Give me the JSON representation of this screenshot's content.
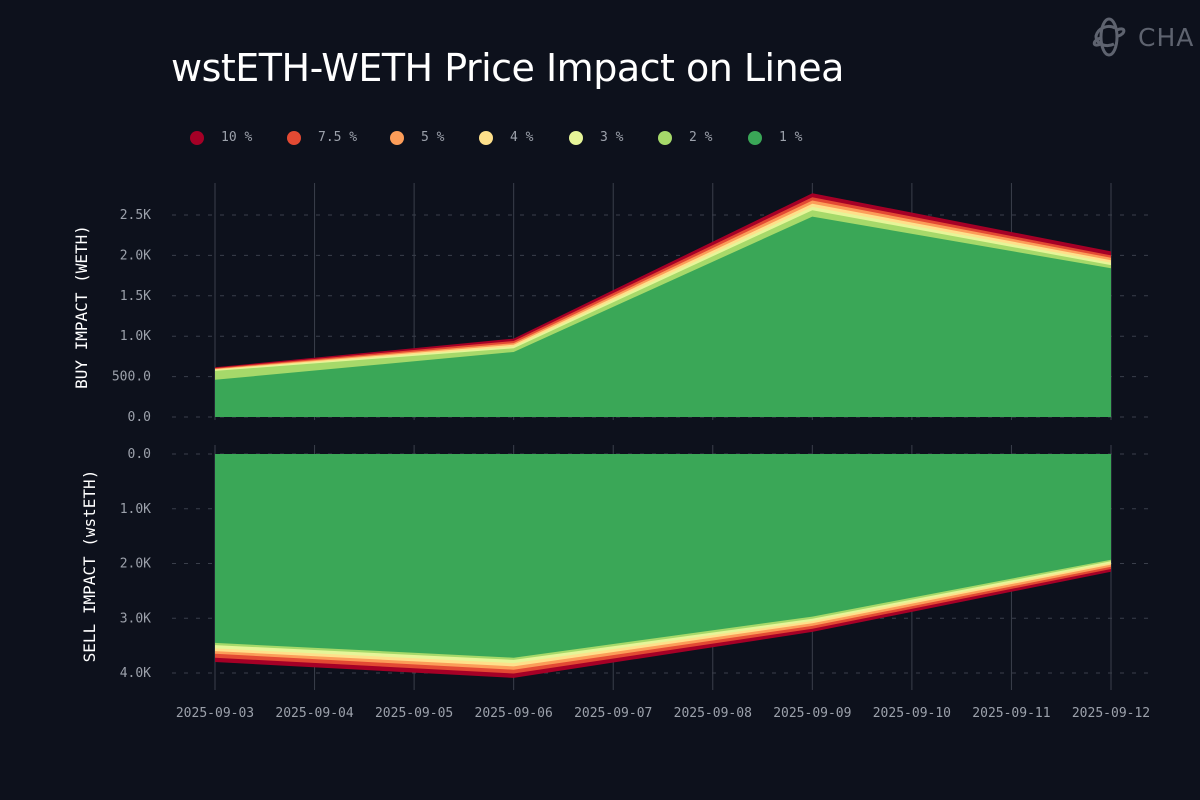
{
  "title": "wstETH-WETH Price Impact on Linea",
  "logo": {
    "text": "CHAOS",
    "visible_text": "CHA",
    "icon": "chaos-labs-logo-icon"
  },
  "colors": {
    "background": "#0d111c",
    "grid": "#3a3f4b",
    "tick_text": "#9ca1ab"
  },
  "legend": [
    {
      "label": "10 %",
      "color": "#a50026"
    },
    {
      "label": "7.5 %",
      "color": "#e34a33"
    },
    {
      "label": "5 %",
      "color": "#fc9d59"
    },
    {
      "label": "4 %",
      "color": "#fee08b"
    },
    {
      "label": "3 %",
      "color": "#e6f598"
    },
    {
      "label": "2 %",
      "color": "#a6d96a"
    },
    {
      "label": "1 %",
      "color": "#3aa757"
    }
  ],
  "chart_data": [
    {
      "type": "area",
      "stacked": true,
      "panel": "top",
      "ylabel": "BUY IMPACT (WETH)",
      "ylim": [
        0,
        2800
      ],
      "yticks": [
        0,
        500,
        1000,
        1500,
        2000,
        2500
      ],
      "ytick_labels": [
        "0.0",
        "500.0",
        "1.0K",
        "1.5K",
        "2.0K",
        "2.5K"
      ],
      "x": [
        "2025-09-03",
        "2025-09-06",
        "2025-09-09",
        "2025-09-12"
      ],
      "series_cumulative": [
        {
          "name": "1 %",
          "values": [
            460,
            805,
            2480,
            1840
          ]
        },
        {
          "name": "2 %",
          "values": [
            570,
            850,
            2560,
            1880
          ]
        },
        {
          "name": "3 %",
          "values": [
            580,
            872,
            2600,
            1910
          ]
        },
        {
          "name": "4 %",
          "values": [
            590,
            895,
            2640,
            1940
          ]
        },
        {
          "name": "5 %",
          "values": [
            598,
            915,
            2680,
            1970
          ]
        },
        {
          "name": "7.5 %",
          "values": [
            606,
            940,
            2720,
            2000
          ]
        },
        {
          "name": "10 %",
          "values": [
            615,
            970,
            2770,
            2050
          ]
        }
      ],
      "grid": true
    },
    {
      "type": "area",
      "stacked": true,
      "panel": "bottom",
      "inverted_y": true,
      "ylabel": "SELL IMPACT (wstETH)",
      "ylim": [
        0,
        4000
      ],
      "yticks": [
        0,
        1000,
        2000,
        3000,
        4000
      ],
      "ytick_labels": [
        "0.0",
        "1.0K",
        "2.0K",
        "3.0K",
        "4.0K"
      ],
      "x": [
        "2025-09-03",
        "2025-09-06",
        "2025-09-09",
        "2025-09-12"
      ],
      "series_cumulative": [
        {
          "name": "1 %",
          "values": [
            3450,
            3720,
            2970,
            1930
          ]
        },
        {
          "name": "2 %",
          "values": [
            3490,
            3760,
            3010,
            1960
          ]
        },
        {
          "name": "3 %",
          "values": [
            3550,
            3820,
            3050,
            1990
          ]
        },
        {
          "name": "4 %",
          "values": [
            3600,
            3880,
            3090,
            2020
          ]
        },
        {
          "name": "5 %",
          "values": [
            3650,
            3940,
            3140,
            2060
          ]
        },
        {
          "name": "7.5 %",
          "values": [
            3720,
            4010,
            3190,
            2100
          ]
        },
        {
          "name": "10 %",
          "values": [
            3800,
            4090,
            3250,
            2150
          ]
        }
      ],
      "grid": true
    }
  ],
  "xaxis": {
    "tick_labels": [
      "2025-09-03",
      "2025-09-04",
      "2025-09-05",
      "2025-09-06",
      "2025-09-07",
      "2025-09-08",
      "2025-09-09",
      "2025-09-10",
      "2025-09-11",
      "2025-09-12"
    ]
  }
}
